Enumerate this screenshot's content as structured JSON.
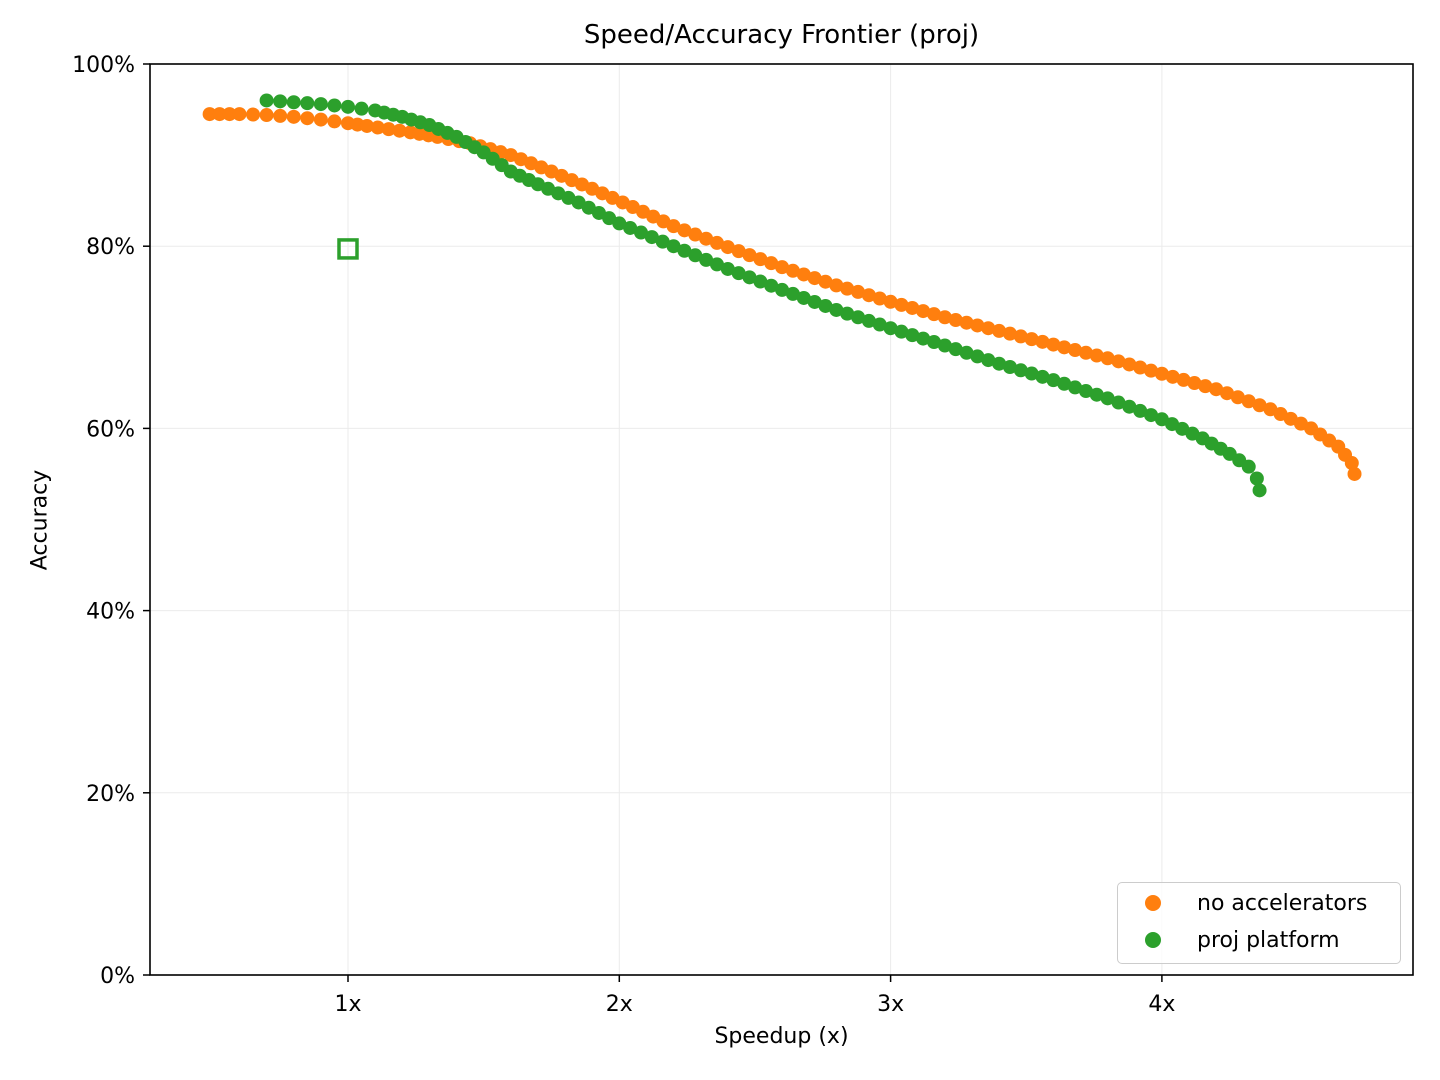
{
  "chart_data": {
    "type": "scatter",
    "title": "Speed/Accuracy Frontier (proj)",
    "xlabel": "Speedup (x)",
    "ylabel": "Accuracy",
    "xlim": [
      0.27,
      4.93
    ],
    "ylim": [
      0,
      100
    ],
    "x_ticks": [
      1,
      2,
      3,
      4
    ],
    "x_tick_labels": [
      "1x",
      "2x",
      "3x",
      "4x"
    ],
    "y_ticks": [
      0,
      20,
      40,
      60,
      80,
      100
    ],
    "y_tick_labels": [
      "0%",
      "20%",
      "40%",
      "60%",
      "80%",
      "100%"
    ],
    "grid": true,
    "legend_position": "lower right",
    "series": [
      {
        "name": "no accelerators",
        "color": "#ff7f0e",
        "x": [
          0.49,
          0.6,
          0.7,
          0.8,
          0.9,
          1.0,
          1.07,
          1.23,
          1.33,
          1.45,
          1.6,
          1.75,
          1.9,
          2.05,
          2.2,
          2.4,
          2.6,
          2.8,
          3.0,
          3.2,
          3.4,
          3.6,
          3.8,
          4.0,
          4.2,
          4.4,
          4.55,
          4.65,
          4.7,
          4.71
        ],
        "y": [
          94.5,
          94.5,
          94.4,
          94.2,
          93.9,
          93.5,
          93.2,
          92.5,
          92.0,
          91.3,
          90.0,
          88.2,
          86.3,
          84.3,
          82.2,
          79.9,
          77.7,
          75.7,
          73.9,
          72.2,
          70.7,
          69.2,
          67.7,
          66.0,
          64.3,
          62.1,
          60.0,
          58.0,
          56.2,
          55.0
        ]
      },
      {
        "name": "proj platform",
        "color": "#2ca02c",
        "x": [
          0.7,
          0.8,
          0.9,
          1.0,
          1.1,
          1.2,
          1.3,
          1.4,
          1.5,
          1.6,
          1.7,
          1.85,
          2.0,
          2.2,
          2.4,
          2.6,
          2.8,
          3.0,
          3.2,
          3.4,
          3.6,
          3.8,
          4.0,
          4.15,
          4.25,
          4.32,
          4.35,
          4.36
        ],
        "y": [
          96.0,
          95.8,
          95.6,
          95.3,
          94.9,
          94.2,
          93.3,
          92.0,
          90.3,
          88.2,
          86.8,
          84.8,
          82.5,
          80.0,
          77.5,
          75.2,
          73.0,
          71.0,
          69.1,
          67.1,
          65.3,
          63.3,
          61.0,
          58.9,
          57.2,
          55.8,
          54.5,
          53.2
        ]
      },
      {
        "name": "baseline marker",
        "color": "#2ca02c",
        "marker": "hollow-square",
        "x": [
          1.0
        ],
        "y": [
          79.7
        ]
      }
    ]
  },
  "legend": {
    "items": [
      {
        "label": "no accelerators",
        "color": "#ff7f0e"
      },
      {
        "label": "proj platform",
        "color": "#2ca02c"
      }
    ]
  }
}
